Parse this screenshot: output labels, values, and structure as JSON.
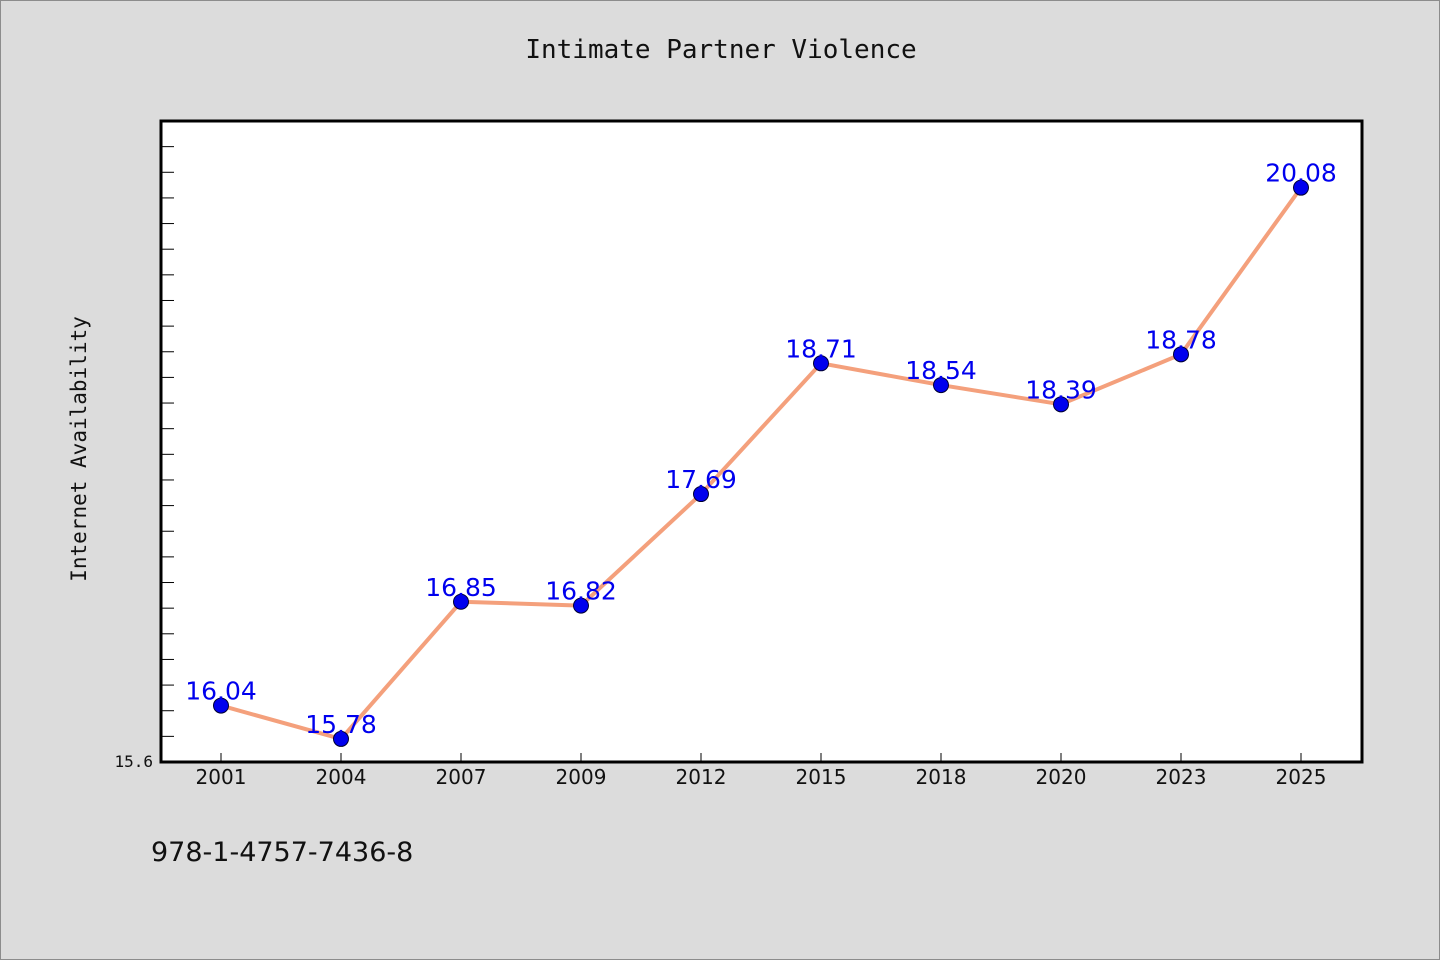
{
  "chart_data": {
    "type": "line",
    "title": "Intimate Partner Violence",
    "ylabel": "Internet Availability",
    "xlabel": "",
    "categories": [
      "2001",
      "2004",
      "2007",
      "2009",
      "2012",
      "2015",
      "2018",
      "2020",
      "2023",
      "2025"
    ],
    "series": [
      {
        "values": [
          16.04,
          15.78,
          16.85,
          16.82,
          17.69,
          18.71,
          18.54,
          18.39,
          18.78,
          20.08
        ]
      }
    ],
    "data_labels": [
      "16.04",
      "15.78",
      "16.85",
      "16.82",
      "17.69",
      "18.71",
      "18.54",
      "18.39",
      "18.78",
      "20.08"
    ],
    "ylim": [
      15.6,
      20.6
    ],
    "y_min_label": "15.6",
    "grid": false,
    "legend": "none",
    "colors": {
      "line": "#f4a07c",
      "marker": "#0000ee",
      "data_label": "#0000ee",
      "background": "#dcdcdc",
      "plot_background": "#ffffff"
    }
  },
  "footer": {
    "code": "978-1-4757-7436-8"
  }
}
